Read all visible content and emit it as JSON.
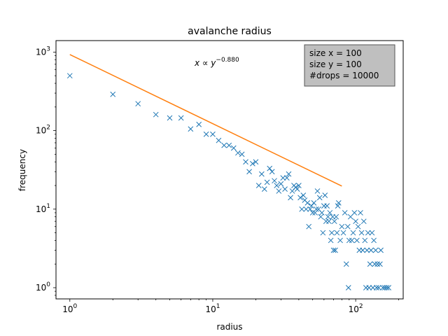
{
  "chart_data": {
    "type": "scatter",
    "title": "avalanche radius",
    "xlabel": "radius",
    "ylabel": "frequency",
    "xscale": "log",
    "yscale": "log",
    "xlim": [
      0.8,
      215
    ],
    "ylim": [
      0.72,
      1400
    ],
    "xticks": [
      1,
      10,
      100
    ],
    "yticks": [
      1,
      10,
      100,
      1000
    ],
    "grid": false,
    "annotation": {
      "prefix": "x ∝ y",
      "exponent": "−0.880"
    },
    "info_box": {
      "lines": [
        "size x = 100",
        "size y = 100",
        "#drops = 10000"
      ],
      "placement": "top-right"
    },
    "series": [
      {
        "marker": "x",
        "color": "#1f77b4",
        "points": [
          [
            1,
            500
          ],
          [
            2,
            290
          ],
          [
            3,
            220
          ],
          [
            4,
            160
          ],
          [
            5,
            145
          ],
          [
            6,
            145
          ],
          [
            7,
            105
          ],
          [
            8,
            120
          ],
          [
            9,
            90
          ],
          [
            10,
            90
          ],
          [
            11,
            75
          ],
          [
            12,
            65
          ],
          [
            13,
            65
          ],
          [
            14,
            60
          ],
          [
            15,
            52
          ],
          [
            16,
            50
          ],
          [
            17,
            40
          ],
          [
            18,
            30
          ],
          [
            19,
            38
          ],
          [
            20,
            40
          ],
          [
            21,
            20
          ],
          [
            22,
            28
          ],
          [
            23,
            18
          ],
          [
            24,
            22
          ],
          [
            25,
            33
          ],
          [
            26,
            30
          ],
          [
            27,
            23
          ],
          [
            28,
            20
          ],
          [
            29,
            17
          ],
          [
            30,
            21
          ],
          [
            31,
            25
          ],
          [
            32,
            18
          ],
          [
            33,
            25
          ],
          [
            34,
            28
          ],
          [
            35,
            14
          ],
          [
            36,
            17
          ],
          [
            37,
            20
          ],
          [
            38,
            19
          ],
          [
            39,
            18
          ],
          [
            40,
            20
          ],
          [
            41,
            14
          ],
          [
            42,
            10
          ],
          [
            43,
            15
          ],
          [
            44,
            13
          ],
          [
            45,
            10
          ],
          [
            46,
            12
          ],
          [
            47,
            6
          ],
          [
            48,
            10
          ],
          [
            49,
            11
          ],
          [
            50,
            9
          ],
          [
            51,
            12
          ],
          [
            52,
            9
          ],
          [
            53,
            10
          ],
          [
            54,
            17
          ],
          [
            55,
            10
          ],
          [
            56,
            14
          ],
          [
            57,
            8
          ],
          [
            58,
            9
          ],
          [
            59,
            5
          ],
          [
            60,
            11
          ],
          [
            61,
            15
          ],
          [
            62,
            7
          ],
          [
            63,
            11
          ],
          [
            64,
            8
          ],
          [
            65,
            7
          ],
          [
            66,
            9
          ],
          [
            67,
            4
          ],
          [
            68,
            5
          ],
          [
            69,
            8
          ],
          [
            70,
            3
          ],
          [
            71,
            7
          ],
          [
            72,
            3
          ],
          [
            73,
            8
          ],
          [
            74,
            5
          ],
          [
            75,
            11
          ],
          [
            76,
            12
          ],
          [
            78,
            4
          ],
          [
            80,
            6
          ],
          [
            82,
            5
          ],
          [
            84,
            9
          ],
          [
            86,
            2
          ],
          [
            88,
            6
          ],
          [
            89,
            1
          ],
          [
            90,
            4
          ],
          [
            92,
            8
          ],
          [
            94,
            4
          ],
          [
            96,
            5
          ],
          [
            98,
            9
          ],
          [
            100,
            7
          ],
          [
            102,
            4
          ],
          [
            104,
            6
          ],
          [
            106,
            3
          ],
          [
            108,
            9
          ],
          [
            110,
            5
          ],
          [
            112,
            3
          ],
          [
            114,
            7
          ],
          [
            116,
            4
          ],
          [
            118,
            1
          ],
          [
            120,
            3
          ],
          [
            122,
            5
          ],
          [
            124,
            1
          ],
          [
            126,
            2
          ],
          [
            128,
            3
          ],
          [
            130,
            5
          ],
          [
            132,
            1
          ],
          [
            134,
            4
          ],
          [
            136,
            2
          ],
          [
            138,
            3
          ],
          [
            140,
            1
          ],
          [
            142,
            2
          ],
          [
            145,
            1
          ],
          [
            148,
            2
          ],
          [
            150,
            3
          ],
          [
            155,
            1
          ],
          [
            160,
            1
          ],
          [
            165,
            1
          ],
          [
            170,
            1
          ]
        ]
      },
      {
        "type": "line",
        "color": "#ff7f0e",
        "fit_exponent": -0.88,
        "x_range": [
          1,
          80
        ],
        "y_at_x1": 930
      }
    ]
  }
}
